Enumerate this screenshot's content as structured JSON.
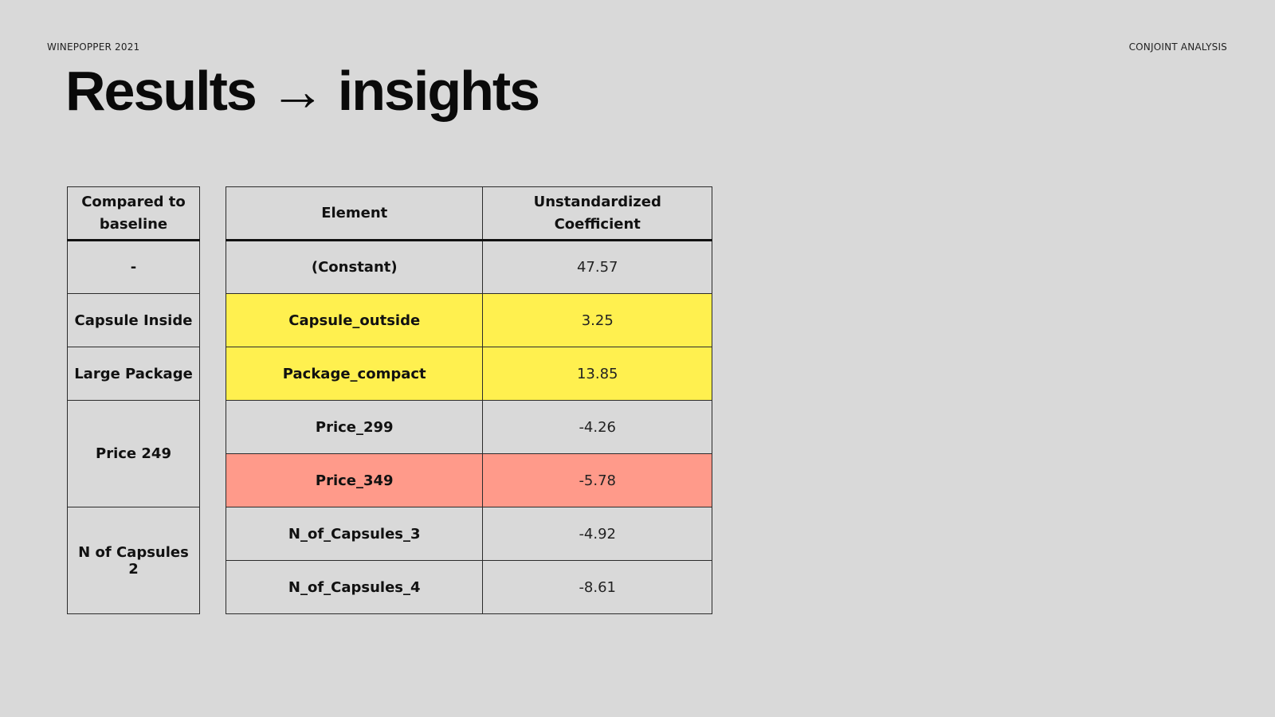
{
  "header": {
    "left": "WINEPOPPER 2021",
    "right": "CONJOINT ANALYSIS"
  },
  "title": "Results → insights",
  "baseline_table": {
    "header": "Compared to baseline",
    "rows": [
      {
        "label": "-"
      },
      {
        "label": "Capsule Inside"
      },
      {
        "label": "Large Package"
      },
      {
        "label": "Price 249"
      },
      {
        "label": "N of Capsules 2"
      }
    ]
  },
  "coef_table": {
    "headers": [
      "Element",
      "Unstandardized Coefficient"
    ],
    "rows": [
      {
        "element": "(Constant)",
        "coefficient": "47.57",
        "highlight": "none"
      },
      {
        "element": "Capsule_outside",
        "coefficient": "3.25",
        "highlight": "yellow"
      },
      {
        "element": "Package_compact",
        "coefficient": "13.85",
        "highlight": "yellow"
      },
      {
        "element": "Price_299",
        "coefficient": "-4.26",
        "highlight": "none"
      },
      {
        "element": "Price_349",
        "coefficient": "-5.78",
        "highlight": "red"
      },
      {
        "element": "N_of_Capsules_3",
        "coefficient": "-4.92",
        "highlight": "none"
      },
      {
        "element": "N_of_Capsules_4",
        "coefficient": "-8.61",
        "highlight": "none"
      }
    ]
  },
  "colors": {
    "background": "#d9d9d9",
    "highlight_yellow": "#fff04f",
    "highlight_red": "#ff9a8a"
  }
}
